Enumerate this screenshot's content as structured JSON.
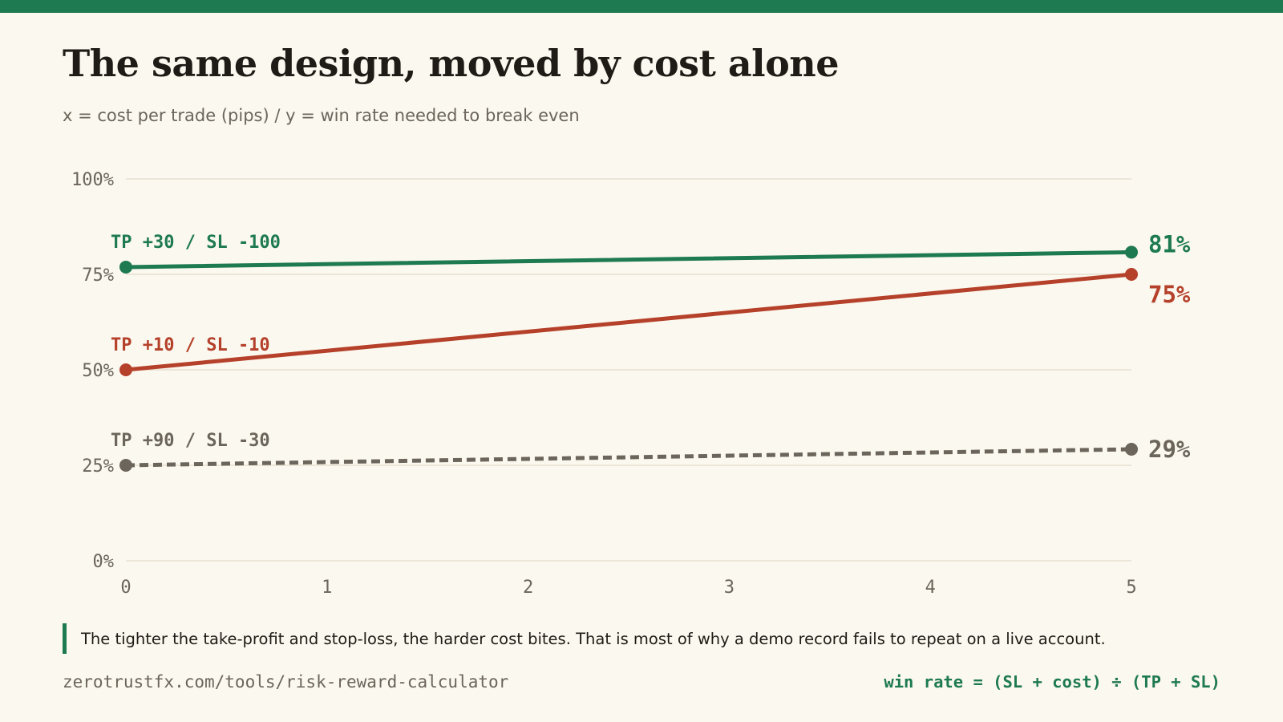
{
  "header": {
    "title": "The same design, moved by cost alone",
    "subtitle": "x = cost per trade (pips) / y = win rate needed to break even"
  },
  "chart_data": {
    "type": "line",
    "x": [
      0,
      5
    ],
    "xlim": [
      0,
      5
    ],
    "ylim": [
      0,
      100
    ],
    "x_ticks": [
      "0",
      "1",
      "2",
      "3",
      "4",
      "5"
    ],
    "y_ticks": [
      "0%",
      "25%",
      "50%",
      "75%",
      "100%"
    ],
    "grid": "horizontal",
    "series": [
      {
        "name": "TP +30 / SL -100",
        "values": [
          76.9,
          80.8
        ],
        "end_label": "81%",
        "color": "#1e7a50",
        "dashed": false
      },
      {
        "name": "TP +10 / SL -10",
        "values": [
          50,
          75
        ],
        "end_label": "75%",
        "color": "#b5412b",
        "dashed": false
      },
      {
        "name": "TP +90 / SL -30",
        "values": [
          25,
          29.2
        ],
        "end_label": "29%",
        "color": "#6b655c",
        "dashed": true
      }
    ]
  },
  "note": "The tighter the take-profit and stop-loss, the harder cost bites. That is most of why a demo record fails to repeat on a live account.",
  "footer": {
    "url": "zerotrustfx.com/tools/risk-reward-calculator",
    "formula": "win rate = (SL + cost) ÷ (TP + SL)"
  },
  "colors": {
    "accent": "#1e7a50",
    "background": "#fbf8ef",
    "grid": "#e2dccb",
    "text": "#1f1b16",
    "muted": "#6b655c"
  }
}
